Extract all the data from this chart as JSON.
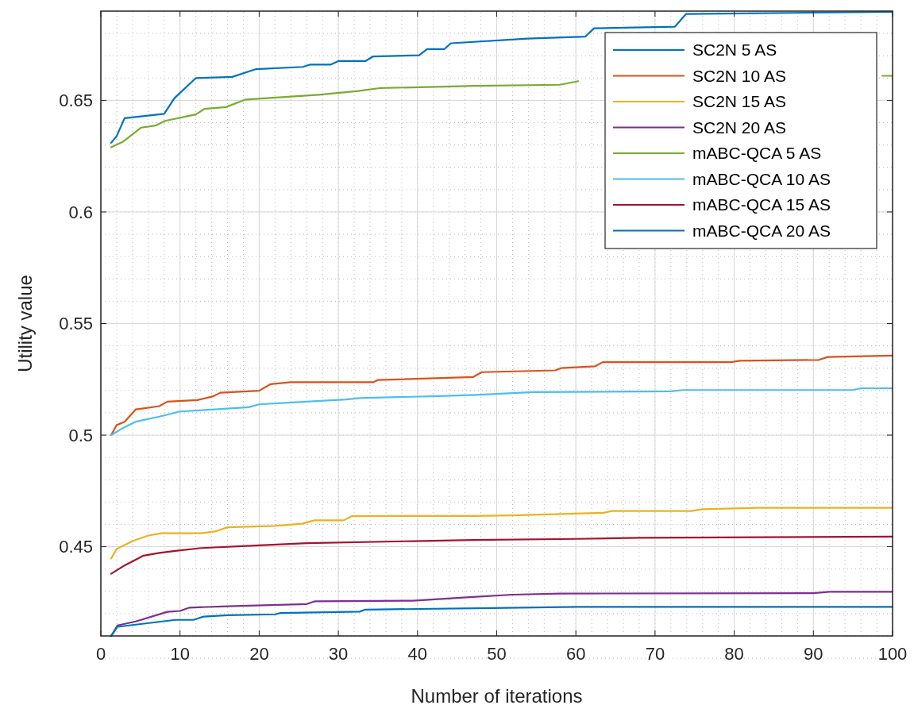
{
  "chart_data": {
    "type": "line",
    "xlabel": "Number of iterations",
    "ylabel": "Utility value",
    "xlim": [
      0,
      100
    ],
    "ylim": [
      0.41,
      0.69
    ],
    "xticks": [
      0,
      10,
      20,
      30,
      40,
      50,
      60,
      70,
      80,
      90,
      100
    ],
    "yticks": [
      0.45,
      0.5,
      0.55,
      0.6,
      0.65
    ],
    "grid": true,
    "legend": "top right",
    "line_style": "solid",
    "series": [
      {
        "name": "SC2N 5 AS",
        "color": "#0072bd",
        "x": [
          1.3,
          2,
          3,
          8,
          9.3,
          12,
          16.6,
          19.6,
          25.5,
          26.4,
          29,
          30,
          33.4,
          34.4,
          40.2,
          41.2,
          43.4,
          44.2,
          53.9,
          61.2,
          62.3,
          72.5,
          73.9,
          100
        ],
        "values": [
          0.631,
          0.634,
          0.642,
          0.644,
          0.651,
          0.66,
          0.6605,
          0.664,
          0.665,
          0.666,
          0.666,
          0.6676,
          0.6676,
          0.6697,
          0.6702,
          0.673,
          0.673,
          0.6756,
          0.6777,
          0.6786,
          0.6823,
          0.683,
          0.6887,
          0.6897
        ]
      },
      {
        "name": "SC2N 10 AS",
        "color": "#d95319",
        "x": [
          1.3,
          2,
          3,
          4.4,
          5.4,
          7.4,
          8.4,
          12.2,
          14.1,
          15.1,
          20,
          21.4,
          24,
          34.4,
          35,
          47,
          48.1,
          57.4,
          58.1,
          62.4,
          63.4,
          79.6,
          80.7,
          90.7,
          91.8,
          100
        ],
        "values": [
          0.5,
          0.5045,
          0.506,
          0.5115,
          0.512,
          0.513,
          0.515,
          0.5157,
          0.5173,
          0.519,
          0.5199,
          0.5228,
          0.5237,
          0.5237,
          0.5247,
          0.526,
          0.5282,
          0.529,
          0.53,
          0.5308,
          0.5327,
          0.5327,
          0.5333,
          0.5337,
          0.535,
          0.5356
        ]
      },
      {
        "name": "SC2N 15 AS",
        "color": "#edb120",
        "x": [
          1.3,
          2,
          4,
          6,
          7.7,
          12.7,
          14.4,
          16,
          22,
          25.4,
          27,
          30.7,
          31.7,
          47,
          52,
          63.5,
          64.6,
          74.6,
          76,
          83,
          100
        ],
        "values": [
          0.4447,
          0.449,
          0.4525,
          0.455,
          0.456,
          0.456,
          0.4568,
          0.4587,
          0.4593,
          0.4603,
          0.4618,
          0.4618,
          0.4637,
          0.4638,
          0.464,
          0.4652,
          0.466,
          0.466,
          0.4668,
          0.4674,
          0.4674
        ]
      },
      {
        "name": "SC2N 20 AS",
        "color": "#7e2f8e",
        "x": [
          1.3,
          2.1,
          4.4,
          8.4,
          10,
          11.2,
          16,
          26,
          27,
          39.4,
          47,
          52,
          58,
          90,
          92,
          100
        ],
        "values": [
          0.41,
          0.4147,
          0.4165,
          0.4208,
          0.4212,
          0.4227,
          0.4233,
          0.4243,
          0.4255,
          0.4258,
          0.4275,
          0.4285,
          0.429,
          0.4292,
          0.4298,
          0.4298
        ]
      },
      {
        "name": "mABC-QCA 5 AS",
        "color": "#77ac30",
        "x": [
          1.3,
          2.8,
          5.1,
          6.9,
          8.1,
          12,
          13.1,
          15.8,
          18.3,
          27.5,
          32.5,
          35.2,
          47.4,
          58,
          60.3,
          80,
          98.7,
          100
        ],
        "values": [
          0.629,
          0.6315,
          0.6378,
          0.6387,
          0.6408,
          0.6437,
          0.6462,
          0.647,
          0.6504,
          0.6525,
          0.6542,
          0.6555,
          0.6565,
          0.657,
          0.6586,
          null,
          0.661,
          0.661
        ]
      },
      {
        "name": "mABC-QCA 10 AS",
        "color": "#4dbeee",
        "x": [
          1.3,
          2.7,
          4.4,
          7.4,
          10,
          14.4,
          18.7,
          20,
          26,
          31,
          32.7,
          42.8,
          47.4,
          54.6,
          72,
          73.5,
          95,
          96,
          100
        ],
        "values": [
          0.5,
          0.503,
          0.506,
          0.5083,
          0.5106,
          0.5115,
          0.5125,
          0.5138,
          0.515,
          0.516,
          0.5166,
          0.5175,
          0.518,
          0.5193,
          0.5196,
          0.5202,
          0.5202,
          0.521,
          0.521
        ]
      },
      {
        "name": "mABC-QCA 15 AS",
        "color": "#a2142f",
        "x": [
          1.3,
          3,
          5.4,
          7.4,
          9.4,
          12.7,
          20,
          26,
          39.4,
          47,
          60,
          68,
          100
        ],
        "values": [
          0.4379,
          0.4416,
          0.446,
          0.4472,
          0.4481,
          0.4494,
          0.4506,
          0.4516,
          0.4525,
          0.453,
          0.4535,
          0.454,
          0.4545
        ]
      },
      {
        "name": "mABC-QCA 20 AS",
        "color": "#0072bd",
        "x": [
          1.3,
          2.1,
          9.4,
          11.7,
          13,
          16,
          22,
          22.7,
          32.7,
          33.4,
          49.4,
          60,
          100
        ],
        "values": [
          0.41,
          0.4141,
          0.4172,
          0.4172,
          0.4187,
          0.4193,
          0.4197,
          0.4203,
          0.4209,
          0.4218,
          0.4225,
          0.423,
          0.423
        ]
      }
    ]
  }
}
